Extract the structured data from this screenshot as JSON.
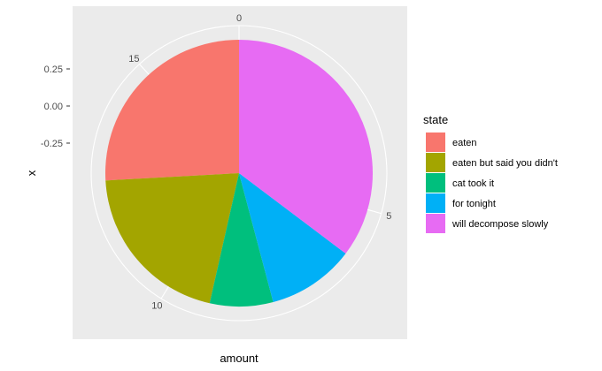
{
  "chart_data": {
    "type": "pie",
    "xlabel": "amount",
    "ylabel": "x",
    "y_ticks": [
      "0.25",
      "0.00",
      "-0.25"
    ],
    "theta_ticks": [
      0,
      5,
      10,
      15
    ],
    "theta_max": 17,
    "legend": {
      "title": "state",
      "position": "right"
    },
    "slices": [
      {
        "label": "eaten",
        "value": 4.4,
        "color": "#F8766D"
      },
      {
        "label": "eaten but said you didn't",
        "value": 3.5,
        "color": "#A3A500"
      },
      {
        "label": "cat took it",
        "value": 1.3,
        "color": "#00BF7D"
      },
      {
        "label": "for tonight",
        "value": 1.8,
        "color": "#00B0F6"
      },
      {
        "label": "will decompose slowly",
        "value": 6.0,
        "color": "#E76BF3"
      }
    ],
    "panel_background": "#EBEBEB",
    "grid_color": "#FFFFFF"
  }
}
